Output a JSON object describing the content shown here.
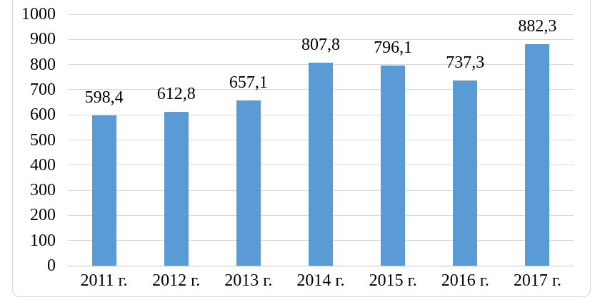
{
  "chart_data": {
    "type": "bar",
    "title": "",
    "xlabel": "",
    "ylabel": "",
    "categories": [
      "2011 г.",
      "2012 г.",
      "2013 г.",
      "2014 г.",
      "2015 г.",
      "2016 г.",
      "2017 г."
    ],
    "values": [
      598.4,
      612.8,
      657.1,
      807.8,
      796.1,
      737.3,
      882.3
    ],
    "value_labels": [
      "598,4",
      "612,8",
      "657,1",
      "807,8",
      "796,1",
      "737,3",
      "882,3"
    ],
    "ylim": [
      0,
      1000
    ],
    "ytick_step": 100,
    "ytick_labels": [
      "0",
      "100",
      "200",
      "300",
      "400",
      "500",
      "600",
      "700",
      "800",
      "900",
      "1000"
    ],
    "grid": true,
    "legend": false,
    "bar_color": "#5B9BD5",
    "gridline_color": "#D9D9D9",
    "axis_line_color": "#C8C8C8",
    "frame_border_color": "#D9D9D9",
    "text_color": "#000000"
  }
}
